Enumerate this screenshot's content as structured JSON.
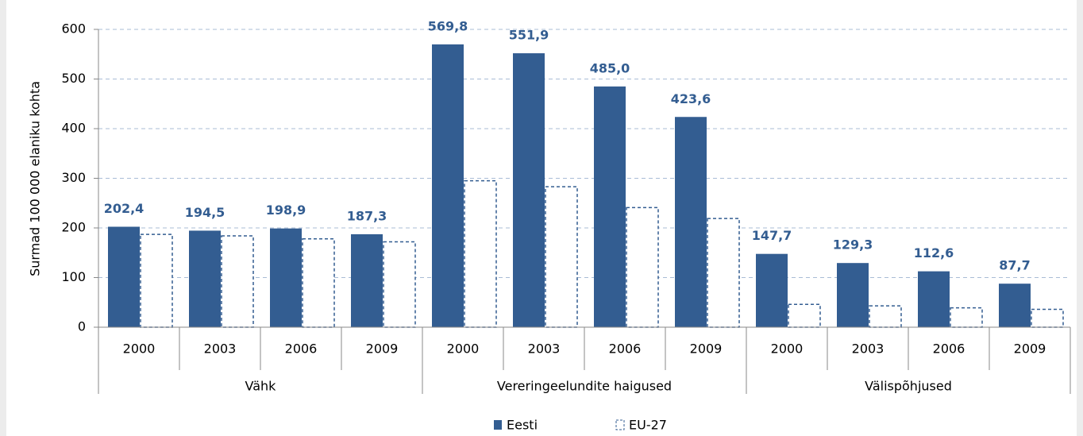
{
  "chart_data": {
    "type": "bar",
    "ylabel": "Surmad 100 000 elaniku kohta",
    "categories": [
      "2000",
      "2003",
      "2006",
      "2009",
      "2000",
      "2003",
      "2006",
      "2009",
      "2000",
      "2003",
      "2006",
      "2009"
    ],
    "groups": [
      "Vähk",
      "Vereringeelundite haigused",
      "Välispõhjused"
    ],
    "series": [
      {
        "name": "Eesti",
        "color": "#335d91",
        "values": [
          202.4,
          194.5,
          198.9,
          187.3,
          569.8,
          551.9,
          485.0,
          423.6,
          147.7,
          129.3,
          112.6,
          87.7
        ],
        "value_labels": [
          "202,4",
          "194,5",
          "198,9",
          "187,3",
          "569,8",
          "551,9",
          "485,0",
          "423,6",
          "147,7",
          "129,3",
          "112,6",
          "87,7"
        ]
      },
      {
        "name": "EU-27",
        "color": "#335d91",
        "values": [
          187,
          184,
          178,
          172,
          295,
          283,
          241,
          219,
          46,
          43,
          39,
          36
        ]
      }
    ],
    "ylim": [
      0,
      600
    ],
    "yticks": [
      0,
      100,
      200,
      300,
      400,
      500,
      600
    ],
    "grid": true
  }
}
